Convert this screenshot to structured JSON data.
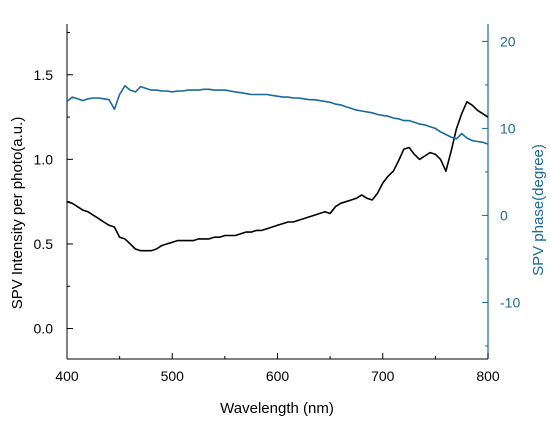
{
  "colors": {
    "left_axis": "#000000",
    "right_axis": "#1a6a98",
    "black_series": "#000000",
    "blue_series": "#1a6a98"
  },
  "chart_data": {
    "type": "line",
    "title": "",
    "xlabel": "Wavelength (nm)",
    "ylabel_left": "SPV Intensity per photo(a.u.)",
    "ylabel_right": "SPV phase(degree)",
    "xlim": [
      400,
      800
    ],
    "ylim_left": [
      -0.18,
      1.8
    ],
    "ylim_right": [
      -16.5,
      22
    ],
    "x_ticks": [
      "400",
      "500",
      "600",
      "700",
      "800"
    ],
    "y_left_ticks": [
      "0.0",
      "0.5",
      "1.0",
      "1.5"
    ],
    "y_right_ticks": [
      "-10",
      "0",
      "10",
      "20"
    ],
    "grid": false,
    "series": [
      {
        "axis": "left",
        "x": [
          400,
          405,
          410,
          415,
          420,
          425,
          430,
          435,
          440,
          445,
          450,
          455,
          460,
          465,
          470,
          475,
          480,
          485,
          490,
          495,
          500,
          505,
          510,
          515,
          520,
          525,
          530,
          535,
          540,
          545,
          550,
          555,
          560,
          565,
          570,
          575,
          580,
          585,
          590,
          595,
          600,
          605,
          610,
          615,
          620,
          625,
          630,
          635,
          640,
          645,
          650,
          655,
          660,
          665,
          670,
          675,
          680,
          685,
          690,
          695,
          700,
          705,
          710,
          715,
          720,
          725,
          730,
          735,
          740,
          745,
          750,
          755,
          760,
          765,
          770,
          775,
          780,
          785,
          790,
          795,
          800
        ],
        "values": [
          0.75,
          0.74,
          0.72,
          0.7,
          0.69,
          0.67,
          0.65,
          0.63,
          0.61,
          0.6,
          0.54,
          0.53,
          0.5,
          0.47,
          0.46,
          0.46,
          0.46,
          0.47,
          0.49,
          0.5,
          0.51,
          0.52,
          0.52,
          0.52,
          0.52,
          0.53,
          0.53,
          0.53,
          0.54,
          0.54,
          0.55,
          0.55,
          0.55,
          0.56,
          0.57,
          0.57,
          0.58,
          0.58,
          0.59,
          0.6,
          0.61,
          0.62,
          0.63,
          0.63,
          0.64,
          0.65,
          0.66,
          0.67,
          0.68,
          0.69,
          0.68,
          0.72,
          0.74,
          0.75,
          0.76,
          0.77,
          0.79,
          0.77,
          0.76,
          0.8,
          0.86,
          0.9,
          0.93,
          0.99,
          1.06,
          1.07,
          1.03,
          1.0,
          1.02,
          1.04,
          1.03,
          1.0,
          0.93,
          1.05,
          1.18,
          1.27,
          1.34,
          1.32,
          1.29,
          1.27,
          1.25
        ]
      },
      {
        "axis": "right",
        "x": [
          400,
          405,
          410,
          415,
          420,
          425,
          430,
          435,
          440,
          445,
          450,
          455,
          460,
          465,
          470,
          475,
          480,
          485,
          490,
          495,
          500,
          505,
          510,
          515,
          520,
          525,
          530,
          535,
          540,
          545,
          550,
          555,
          560,
          565,
          570,
          575,
          580,
          585,
          590,
          595,
          600,
          605,
          610,
          615,
          620,
          625,
          630,
          635,
          640,
          645,
          650,
          655,
          660,
          665,
          670,
          675,
          680,
          685,
          690,
          695,
          700,
          705,
          710,
          715,
          720,
          725,
          730,
          735,
          740,
          745,
          750,
          755,
          760,
          765,
          770,
          775,
          780,
          785,
          790,
          795,
          800
        ],
        "values": [
          13.1,
          13.6,
          13.4,
          13.2,
          13.4,
          13.5,
          13.5,
          13.4,
          13.3,
          12.2,
          13.9,
          14.9,
          14.4,
          14.2,
          14.8,
          14.6,
          14.4,
          14.4,
          14.3,
          14.3,
          14.2,
          14.3,
          14.3,
          14.4,
          14.4,
          14.4,
          14.5,
          14.5,
          14.4,
          14.4,
          14.4,
          14.3,
          14.2,
          14.1,
          14.0,
          13.9,
          13.9,
          13.9,
          13.9,
          13.8,
          13.7,
          13.6,
          13.6,
          13.5,
          13.5,
          13.4,
          13.3,
          13.3,
          13.2,
          13.1,
          13.0,
          12.8,
          12.7,
          12.5,
          12.3,
          12.1,
          12.0,
          11.9,
          11.8,
          11.6,
          11.5,
          11.4,
          11.2,
          11.1,
          10.9,
          10.9,
          10.7,
          10.5,
          10.4,
          10.2,
          10.0,
          9.6,
          9.3,
          9.0,
          8.8,
          9.4,
          8.9,
          8.6,
          8.5,
          8.4,
          8.2
        ]
      }
    ]
  }
}
